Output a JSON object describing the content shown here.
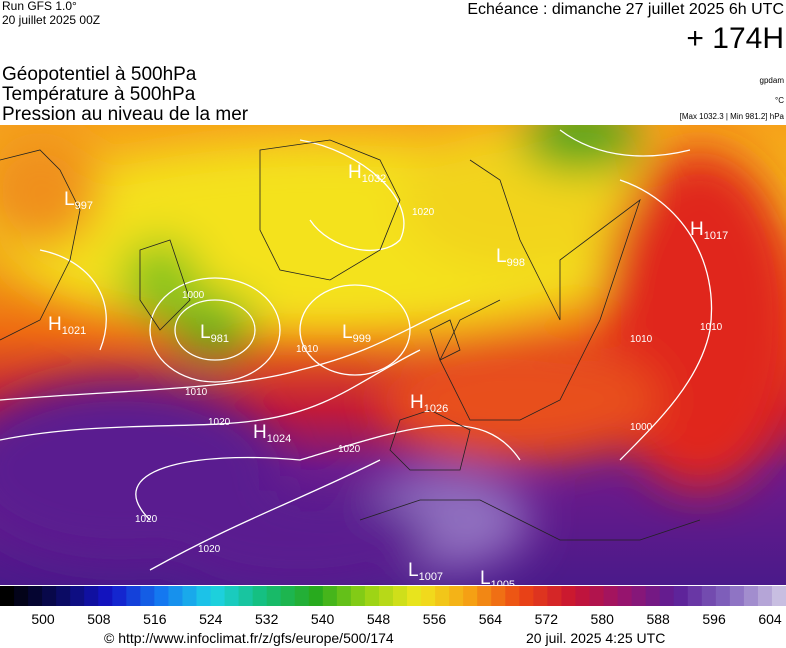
{
  "header": {
    "run": "Run GFS 1.0°",
    "run_date": "20 juillet 2025 00Z",
    "valid": "Echéance : dimanche 27 juillet 2025 6h UTC",
    "lead": "+ 174H"
  },
  "titles": [
    "Géopotentiel à 500hPa",
    "Température à 500hPa",
    "Pression au niveau de la mer"
  ],
  "units": {
    "geopotential": "gpdam",
    "temperature": "°C",
    "pressure": "[Max 1032.3 | Min 981.2] hPa"
  },
  "centers": [
    {
      "letter": "H",
      "value": "1032"
    },
    {
      "letter": "L",
      "value": "997"
    },
    {
      "letter": "H",
      "value": "1021"
    },
    {
      "letter": "L",
      "value": "981"
    },
    {
      "letter": "L",
      "value": "999"
    },
    {
      "letter": "L",
      "value": "998"
    },
    {
      "letter": "H",
      "value": "1017"
    },
    {
      "letter": "H",
      "value": "1026"
    },
    {
      "letter": "H",
      "value": "1024"
    },
    {
      "letter": "L",
      "value": "1007"
    },
    {
      "letter": "L",
      "value": "1005"
    }
  ],
  "isobar_labels": [
    "1010",
    "1000",
    "1010",
    "1020",
    "1020",
    "1020",
    "1020",
    "1010",
    "1010",
    "1000",
    "1020"
  ],
  "colorbar": {
    "labels": [
      "500",
      "508",
      "516",
      "524",
      "532",
      "540",
      "548",
      "556",
      "564",
      "572",
      "580",
      "588",
      "596",
      "604"
    ]
  },
  "footer": {
    "url": "© http://www.infoclimat.fr/z/gfs/europe/500/174",
    "generated": "20 juil. 2025  4:25 UTC"
  }
}
